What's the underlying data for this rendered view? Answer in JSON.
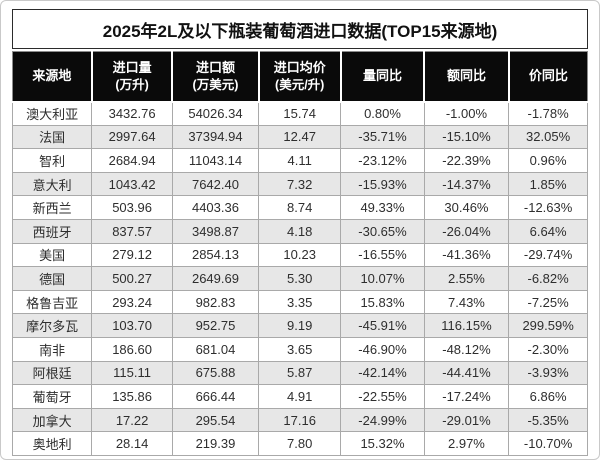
{
  "title": "2025年2L及以下瓶装葡萄酒进口数据(TOP15来源地)",
  "colors": {
    "header_bg": "#0a0a0a",
    "header_text": "#ffffff",
    "row_alt_bg": "#e7e7e7",
    "grid_border": "#a9a9a9",
    "frame_border": "#c9c9c9",
    "text": "#2e2e2e"
  },
  "chart_data": {
    "type": "table",
    "title": "2025年2L及以下瓶装葡萄酒进口数据(TOP15来源地)",
    "columns": [
      {
        "label": "来源地",
        "sub": ""
      },
      {
        "label": "进口量",
        "sub": "(万升)"
      },
      {
        "label": "进口额",
        "sub": "(万美元)"
      },
      {
        "label": "进口均价",
        "sub": "(美元/升)"
      },
      {
        "label": "量同比",
        "sub": ""
      },
      {
        "label": "额同比",
        "sub": ""
      },
      {
        "label": "价同比",
        "sub": ""
      }
    ],
    "rows": [
      [
        "澳大利亚",
        "3432.76",
        "54026.34",
        "15.74",
        "0.80%",
        "-1.00%",
        "-1.78%"
      ],
      [
        "法国",
        "2997.64",
        "37394.94",
        "12.47",
        "-35.71%",
        "-15.10%",
        "32.05%"
      ],
      [
        "智利",
        "2684.94",
        "11043.14",
        "4.11",
        "-23.12%",
        "-22.39%",
        "0.96%"
      ],
      [
        "意大利",
        "1043.42",
        "7642.40",
        "7.32",
        "-15.93%",
        "-14.37%",
        "1.85%"
      ],
      [
        "新西兰",
        "503.96",
        "4403.36",
        "8.74",
        "49.33%",
        "30.46%",
        "-12.63%"
      ],
      [
        "西班牙",
        "837.57",
        "3498.87",
        "4.18",
        "-30.65%",
        "-26.04%",
        "6.64%"
      ],
      [
        "美国",
        "279.12",
        "2854.13",
        "10.23",
        "-16.55%",
        "-41.36%",
        "-29.74%"
      ],
      [
        "德国",
        "500.27",
        "2649.69",
        "5.30",
        "10.07%",
        "2.55%",
        "-6.82%"
      ],
      [
        "格鲁吉亚",
        "293.24",
        "982.83",
        "3.35",
        "15.83%",
        "7.43%",
        "-7.25%"
      ],
      [
        "摩尔多瓦",
        "103.70",
        "952.75",
        "9.19",
        "-45.91%",
        "116.15%",
        "299.59%"
      ],
      [
        "南非",
        "186.60",
        "681.04",
        "3.65",
        "-46.90%",
        "-48.12%",
        "-2.30%"
      ],
      [
        "阿根廷",
        "115.11",
        "675.88",
        "5.87",
        "-42.14%",
        "-44.41%",
        "-3.93%"
      ],
      [
        "葡萄牙",
        "135.86",
        "666.44",
        "4.91",
        "-22.55%",
        "-17.24%",
        "6.86%"
      ],
      [
        "加拿大",
        "17.22",
        "295.54",
        "17.16",
        "-24.99%",
        "-29.01%",
        "-5.35%"
      ],
      [
        "奥地利",
        "28.14",
        "219.39",
        "7.80",
        "15.32%",
        "2.97%",
        "-10.70%"
      ]
    ]
  }
}
